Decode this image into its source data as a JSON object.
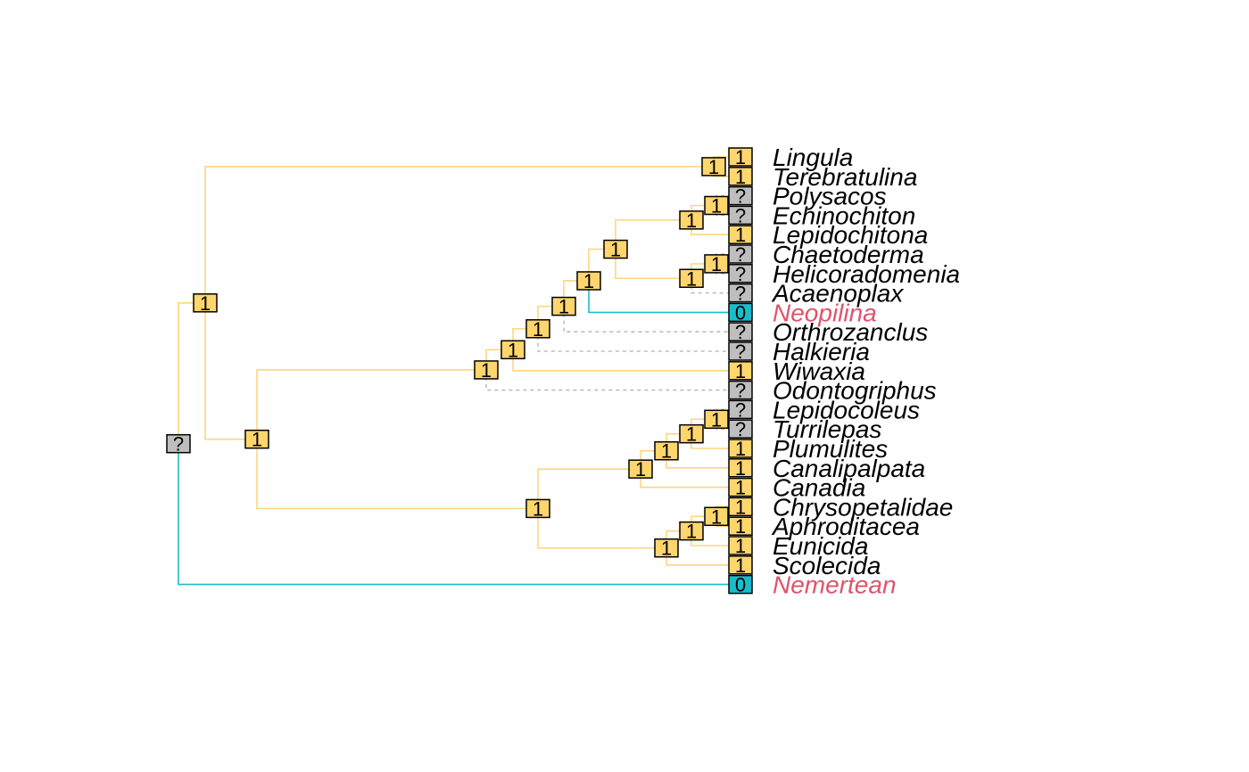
{
  "legend_colors": {
    "1": "#FFD66E",
    "0": "#1BBCCA",
    "?": "#BEBEBE"
  },
  "branch_colors": {
    "1": "#FFD580",
    "0": "#1BBCCA",
    "?": "#BEBEBE"
  },
  "highlight_label_color": "#DF536B",
  "label_color": "#000000",
  "tips": [
    {
      "name": "Lingula",
      "state": "1",
      "highlight": false
    },
    {
      "name": "Terebratulina",
      "state": "1",
      "highlight": false
    },
    {
      "name": "Polysacos",
      "state": "?",
      "highlight": false
    },
    {
      "name": "Echinochiton",
      "state": "?",
      "highlight": false
    },
    {
      "name": "Lepidochitona",
      "state": "1",
      "highlight": false
    },
    {
      "name": "Chaetoderma",
      "state": "?",
      "highlight": false
    },
    {
      "name": "Helicoradomenia",
      "state": "?",
      "highlight": false
    },
    {
      "name": "Acaenoplax",
      "state": "?",
      "highlight": false
    },
    {
      "name": "Neopilina",
      "state": "0",
      "highlight": true
    },
    {
      "name": "Orthrozanclus",
      "state": "?",
      "highlight": false
    },
    {
      "name": "Halkieria",
      "state": "?",
      "highlight": false
    },
    {
      "name": "Wiwaxia",
      "state": "1",
      "highlight": false
    },
    {
      "name": "Odontogriphus",
      "state": "?",
      "highlight": false
    },
    {
      "name": "Lepidocoleus",
      "state": "?",
      "highlight": false
    },
    {
      "name": "Turrilepas",
      "state": "?",
      "highlight": false
    },
    {
      "name": "Plumulites",
      "state": "1",
      "highlight": false
    },
    {
      "name": "Canalipalpata",
      "state": "1",
      "highlight": false
    },
    {
      "name": "Canadia",
      "state": "1",
      "highlight": false
    },
    {
      "name": "Chrysopetalidae",
      "state": "1",
      "highlight": false
    },
    {
      "name": "Aphroditacea",
      "state": "1",
      "highlight": false
    },
    {
      "name": "Eunicida",
      "state": "1",
      "highlight": false
    },
    {
      "name": "Scolecida",
      "state": "1",
      "highlight": false
    },
    {
      "name": "Nemertean",
      "state": "0",
      "highlight": true
    }
  ],
  "internal_nodes": [
    {
      "id": "root",
      "state": "?",
      "parent": null
    },
    {
      "id": "A",
      "state": "1",
      "parent": "root"
    },
    {
      "id": "B",
      "state": "1",
      "parent": "A"
    },
    {
      "id": "C",
      "state": "1",
      "parent": "A"
    },
    {
      "id": "D",
      "state": "1",
      "parent": "B"
    },
    {
      "id": "E",
      "state": "1",
      "parent": "D"
    },
    {
      "id": "F",
      "state": "1",
      "parent": "E"
    },
    {
      "id": "G",
      "state": "1",
      "parent": "F"
    },
    {
      "id": "H",
      "state": "1",
      "parent": "G"
    },
    {
      "id": "I",
      "state": "1",
      "parent": "H"
    },
    {
      "id": "J",
      "state": "1",
      "parent": "I"
    },
    {
      "id": "K",
      "state": "1",
      "parent": "J"
    },
    {
      "id": "L",
      "state": "1",
      "parent": "I"
    },
    {
      "id": "M",
      "state": "1",
      "parent": "L"
    },
    {
      "id": "N",
      "state": "1",
      "parent": "B"
    },
    {
      "id": "O",
      "state": "1",
      "parent": "N"
    },
    {
      "id": "P",
      "state": "1",
      "parent": "O"
    },
    {
      "id": "Q",
      "state": "1",
      "parent": "P"
    },
    {
      "id": "R",
      "state": "1",
      "parent": "Q"
    },
    {
      "id": "S",
      "state": "1",
      "parent": "N"
    },
    {
      "id": "T",
      "state": "1",
      "parent": "S"
    },
    {
      "id": "U",
      "state": "1",
      "parent": "T"
    }
  ],
  "tip_parents": {
    "Lingula": "C",
    "Terebratulina": "C",
    "Polysacos": "K",
    "Echinochiton": "K",
    "Lepidochitona": "J",
    "Chaetoderma": "M",
    "Helicoradomenia": "M",
    "Acaenoplax": "L",
    "Neopilina": "H",
    "Orthrozanclus": "G",
    "Halkieria": "F",
    "Wiwaxia": "E",
    "Odontogriphus": "D",
    "Lepidocoleus": "R",
    "Turrilepas": "R",
    "Plumulites": "Q",
    "Canalipalpata": "P",
    "Canadia": "O",
    "Chrysopetalidae": "U",
    "Aphroditacea": "U",
    "Eunicida": "T",
    "Scolecida": "S",
    "Nemertean": "root"
  }
}
